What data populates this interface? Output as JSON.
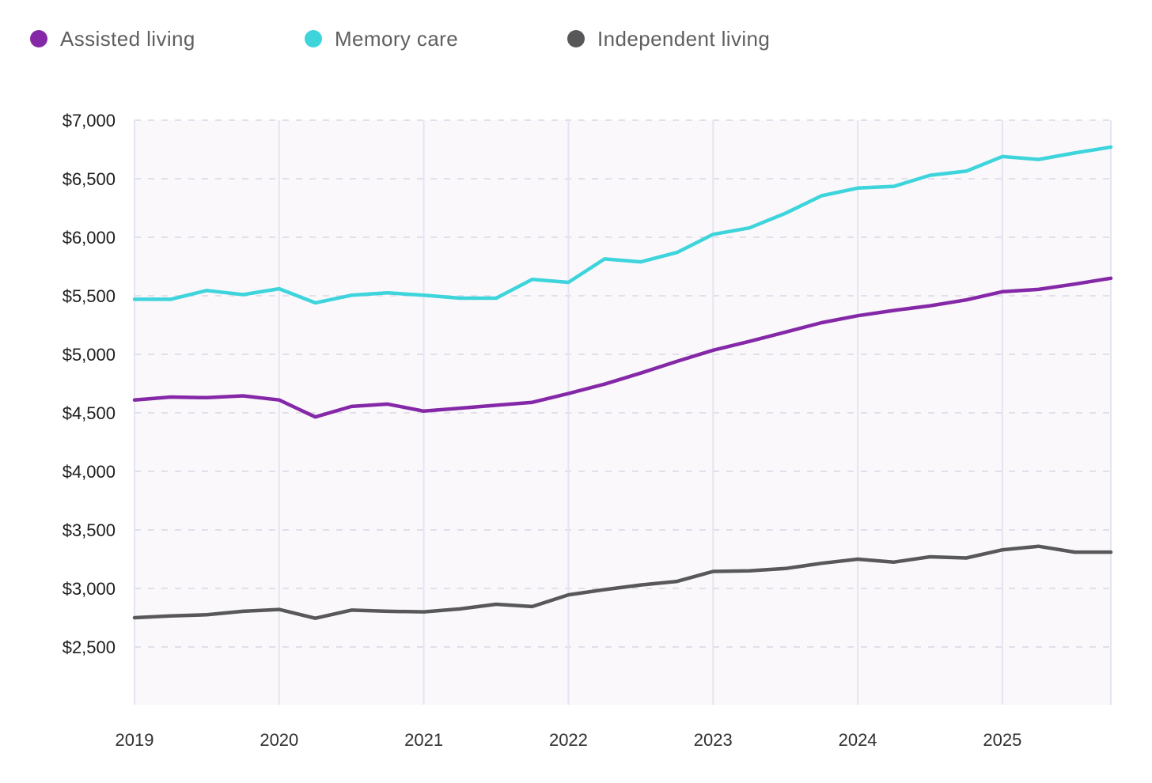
{
  "legend": {
    "items": [
      {
        "id": "assisted-living",
        "label": "Assisted living",
        "color": "#8428a8"
      },
      {
        "id": "memory-care",
        "label": "Memory care",
        "color": "#3ed4dc"
      },
      {
        "id": "independent-living",
        "label": "Independent living",
        "color": "#58585a"
      }
    ]
  },
  "chart_data": {
    "type": "line",
    "x": [
      "2019 Q1",
      "2019 Q2",
      "2019 Q3",
      "2019 Q4",
      "2020 Q1",
      "2020 Q2",
      "2020 Q3",
      "2020 Q4",
      "2021 Q1",
      "2021 Q2",
      "2021 Q3",
      "2021 Q4",
      "2022 Q1",
      "2022 Q2",
      "2022 Q3",
      "2022 Q4",
      "2023 Q1",
      "2023 Q2",
      "2023 Q3",
      "2023 Q4",
      "2024 Q1",
      "2024 Q2",
      "2024 Q3",
      "2024 Q4",
      "2025 Q1",
      "2025 Q2",
      "2025 Q3",
      "2025 Q4"
    ],
    "series": [
      {
        "name": "Assisted living",
        "color": "#8428a8",
        "values": [
          4610,
          4635,
          4630,
          4645,
          4610,
          4465,
          4555,
          4575,
          4515,
          4540,
          4565,
          4590,
          4665,
          4745,
          4840,
          4940,
          5035,
          5110,
          5190,
          5270,
          5330,
          5375,
          5415,
          5465,
          5535,
          5555,
          5600,
          5650
        ]
      },
      {
        "name": "Memory care",
        "color": "#3ed4dc",
        "values": [
          5470,
          5470,
          5545,
          5510,
          5560,
          5440,
          5505,
          5525,
          5505,
          5480,
          5480,
          5640,
          5615,
          5815,
          5790,
          5870,
          6025,
          6080,
          6205,
          6355,
          6420,
          6435,
          6530,
          6565,
          6690,
          6665,
          6720,
          6770
        ]
      },
      {
        "name": "Independent living",
        "color": "#58585a",
        "values": [
          2750,
          2765,
          2775,
          2805,
          2820,
          2745,
          2815,
          2805,
          2800,
          2825,
          2865,
          2845,
          2945,
          2990,
          3030,
          3060,
          3145,
          3150,
          3170,
          3215,
          3250,
          3225,
          3270,
          3260,
          3330,
          3360,
          3310,
          3310
        ]
      }
    ],
    "y_axis": {
      "tick_labels": [
        "$7,000",
        "$6,500",
        "$6,000",
        "$5,500",
        "$5,000",
        "$4,500",
        "$4,000",
        "$3,500",
        "$3,000",
        "$2,500"
      ],
      "tick_values": [
        7000,
        6500,
        6000,
        5500,
        5000,
        4500,
        4000,
        3500,
        3000,
        2500
      ],
      "max": 7000,
      "min_label": 2500
    },
    "x_axis": {
      "tick_labels": [
        "2019",
        "2020",
        "2021",
        "2022",
        "2023",
        "2024",
        "2025"
      ],
      "tick_indices": [
        0,
        4,
        8,
        12,
        16,
        20,
        24
      ]
    },
    "grid": {
      "horizontal": "dashed",
      "vertical": "solid"
    },
    "legend_position": "top-left",
    "colors": {
      "plot_background": "#faf8fa",
      "grid_horizontal": "#e1dfeb",
      "grid_vertical": "#e6e4f0",
      "y_tick_text": "#1d1d1f",
      "x_tick_text": "#2f2f31",
      "legend_text": "#5f5f5f"
    }
  }
}
